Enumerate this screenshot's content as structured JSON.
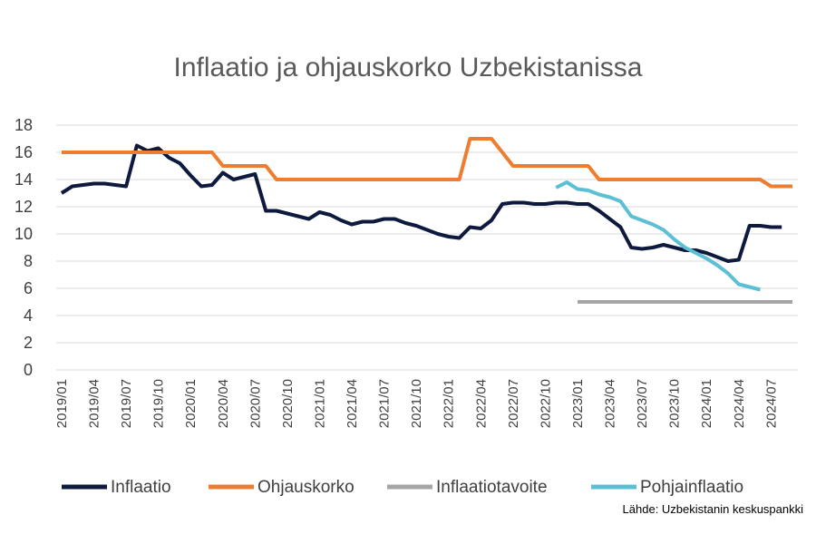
{
  "chart_data": {
    "type": "line",
    "title": "Inflaatio ja ohjauskorko Uzbekistanissa",
    "source": "Lähde: Uzbekistanin keskuspankki",
    "ylim": [
      0,
      18
    ],
    "yticks": [
      0,
      2,
      4,
      6,
      8,
      10,
      12,
      14,
      16,
      18
    ],
    "grid": true,
    "legend_position": "bottom",
    "x": [
      "2019/01",
      "2019/02",
      "2019/03",
      "2019/04",
      "2019/05",
      "2019/06",
      "2019/07",
      "2019/08",
      "2019/09",
      "2019/10",
      "2019/11",
      "2019/12",
      "2020/01",
      "2020/02",
      "2020/03",
      "2020/04",
      "2020/05",
      "2020/06",
      "2020/07",
      "2020/08",
      "2020/09",
      "2020/10",
      "2020/11",
      "2020/12",
      "2021/01",
      "2021/02",
      "2021/03",
      "2021/04",
      "2021/05",
      "2021/06",
      "2021/07",
      "2021/08",
      "2021/09",
      "2021/10",
      "2021/11",
      "2021/12",
      "2022/01",
      "2022/02",
      "2022/03",
      "2022/04",
      "2022/05",
      "2022/06",
      "2022/07",
      "2022/08",
      "2022/09",
      "2022/10",
      "2022/11",
      "2022/12",
      "2023/01",
      "2023/02",
      "2023/03",
      "2023/04",
      "2023/05",
      "2023/06",
      "2023/07",
      "2023/08",
      "2023/09",
      "2023/10",
      "2023/11",
      "2023/12",
      "2024/01",
      "2024/02",
      "2024/03",
      "2024/04",
      "2024/05",
      "2024/06",
      "2024/07",
      "2024/08",
      "2024/09"
    ],
    "xticks": [
      "2019/01",
      "2019/04",
      "2019/07",
      "2019/10",
      "2020/01",
      "2020/04",
      "2020/07",
      "2020/10",
      "2021/01",
      "2021/04",
      "2021/07",
      "2021/10",
      "2022/01",
      "2022/04",
      "2022/07",
      "2022/10",
      "2023/01",
      "2023/04",
      "2023/07",
      "2023/10",
      "2024/01",
      "2024/04",
      "2024/07"
    ],
    "series": [
      {
        "name": "Inflaatio",
        "color": "#0e1a3d",
        "values": [
          13.0,
          13.5,
          13.6,
          13.7,
          13.7,
          13.6,
          13.5,
          16.5,
          16.1,
          16.3,
          15.6,
          15.2,
          14.3,
          13.5,
          13.6,
          14.5,
          14.0,
          14.2,
          14.4,
          11.7,
          11.7,
          11.5,
          11.3,
          11.1,
          11.6,
          11.4,
          11.0,
          10.7,
          10.9,
          10.9,
          11.1,
          11.1,
          10.8,
          10.6,
          10.3,
          10.0,
          9.8,
          9.7,
          10.5,
          10.4,
          11.0,
          12.2,
          12.3,
          12.3,
          12.2,
          12.2,
          12.3,
          12.3,
          12.2,
          12.2,
          11.7,
          11.1,
          10.5,
          9.0,
          8.9,
          9.0,
          9.2,
          9.0,
          8.8,
          8.8,
          8.6,
          8.3,
          8.0,
          8.1,
          10.6,
          10.6,
          10.5,
          10.5,
          null
        ]
      },
      {
        "name": "Ohjauskorko",
        "color": "#ed7d31",
        "values": [
          16,
          16,
          16,
          16,
          16,
          16,
          16,
          16,
          16,
          16,
          16,
          16,
          16,
          16,
          16,
          15,
          15,
          15,
          15,
          15,
          14,
          14,
          14,
          14,
          14,
          14,
          14,
          14,
          14,
          14,
          14,
          14,
          14,
          14,
          14,
          14,
          14,
          14,
          17,
          17,
          17,
          16,
          15,
          15,
          15,
          15,
          15,
          15,
          15,
          15,
          14,
          14,
          14,
          14,
          14,
          14,
          14,
          14,
          14,
          14,
          14,
          14,
          14,
          14,
          14,
          14,
          13.5,
          13.5,
          13.5
        ]
      },
      {
        "name": "Inflaatiotavoite",
        "color": "#a5a5a5",
        "values": [
          null,
          null,
          null,
          null,
          null,
          null,
          null,
          null,
          null,
          null,
          null,
          null,
          null,
          null,
          null,
          null,
          null,
          null,
          null,
          null,
          null,
          null,
          null,
          null,
          null,
          null,
          null,
          null,
          null,
          null,
          null,
          null,
          null,
          null,
          null,
          null,
          null,
          null,
          null,
          null,
          null,
          null,
          null,
          null,
          null,
          null,
          null,
          null,
          5,
          5,
          5,
          5,
          5,
          5,
          5,
          5,
          5,
          5,
          5,
          5,
          5,
          5,
          5,
          5,
          5,
          5,
          5,
          5,
          5
        ]
      },
      {
        "name": "Pohjainflaatio",
        "color": "#5bc0d4",
        "values": [
          null,
          null,
          null,
          null,
          null,
          null,
          null,
          null,
          null,
          null,
          null,
          null,
          null,
          null,
          null,
          null,
          null,
          null,
          null,
          null,
          null,
          null,
          null,
          null,
          null,
          null,
          null,
          null,
          null,
          null,
          null,
          null,
          null,
          null,
          null,
          null,
          null,
          null,
          null,
          null,
          null,
          null,
          null,
          null,
          null,
          null,
          13.4,
          13.8,
          13.3,
          13.2,
          12.9,
          12.7,
          12.4,
          11.3,
          11.0,
          10.7,
          10.3,
          9.6,
          9.0,
          8.6,
          8.2,
          7.7,
          7.1,
          6.3,
          6.1,
          5.9,
          null,
          null,
          null
        ]
      }
    ]
  }
}
